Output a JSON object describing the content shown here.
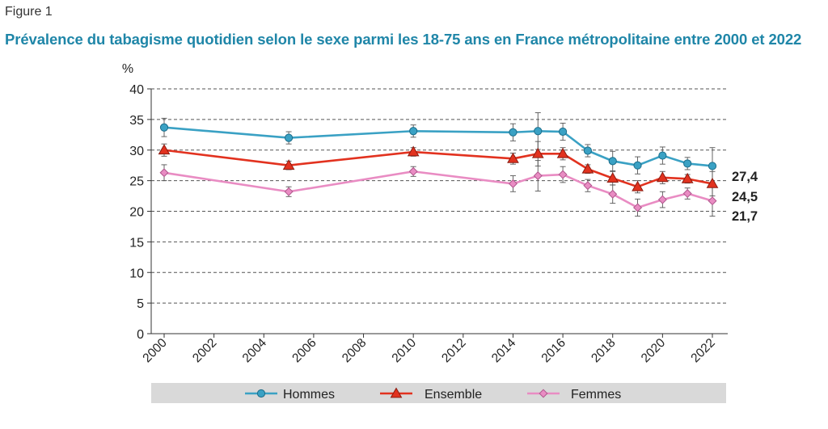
{
  "figure_label": "Figure 1",
  "title": "Prévalence du tabagisme quotidien selon le sexe parmi les 18-75 ans en France métropolitaine entre 2000 et 2022",
  "colors": {
    "title": "#1f86a8",
    "Hommes": "#3aa1c4",
    "Ensemble": "#e2321f",
    "Femmes": "#e98cc3",
    "legend_bg": "#d9d9d9"
  },
  "chart_data": {
    "type": "line",
    "ylabel": "%",
    "ylim": [
      0,
      40
    ],
    "yticks": [
      0,
      5,
      10,
      15,
      20,
      25,
      30,
      35,
      40
    ],
    "xlim": [
      2000,
      2022
    ],
    "xticks": [
      2000,
      2002,
      2004,
      2006,
      2008,
      2010,
      2012,
      2014,
      2016,
      2018,
      2020,
      2022
    ],
    "grid": "horizontal-dashed",
    "legend_position": "bottom",
    "series": [
      {
        "name": "Hommes",
        "marker": "circle",
        "x": [
          2000,
          2005,
          2010,
          2014,
          2015,
          2016,
          2017,
          2018,
          2019,
          2020,
          2021,
          2022
        ],
        "values": [
          33.7,
          32.0,
          33.1,
          32.9,
          33.1,
          33.0,
          29.9,
          28.2,
          27.5,
          29.1,
          27.8,
          27.4
        ],
        "err": [
          1.5,
          1.0,
          1.0,
          1.4,
          3.0,
          1.4,
          1.0,
          1.6,
          1.4,
          1.4,
          1.0,
          3.0
        ]
      },
      {
        "name": "Ensemble",
        "marker": "triangle",
        "x": [
          2000,
          2005,
          2010,
          2014,
          2015,
          2016,
          2017,
          2018,
          2019,
          2020,
          2021,
          2022
        ],
        "values": [
          30.0,
          27.5,
          29.7,
          28.6,
          29.4,
          29.4,
          26.9,
          25.4,
          24.0,
          25.5,
          25.3,
          24.5
        ],
        "err": [
          1.0,
          0.7,
          0.7,
          0.9,
          2.0,
          1.0,
          0.7,
          1.1,
          1.0,
          1.0,
          0.7,
          2.0
        ]
      },
      {
        "name": "Femmes",
        "marker": "diamond",
        "x": [
          2000,
          2005,
          2010,
          2014,
          2015,
          2016,
          2017,
          2018,
          2019,
          2020,
          2021,
          2022
        ],
        "values": [
          26.3,
          23.2,
          26.5,
          24.5,
          25.8,
          26.0,
          24.2,
          22.8,
          20.6,
          21.9,
          22.9,
          21.7
        ],
        "err": [
          1.3,
          0.8,
          0.8,
          1.3,
          2.5,
          1.3,
          1.0,
          1.5,
          1.4,
          1.3,
          0.9,
          2.5
        ]
      }
    ],
    "end_labels": [
      {
        "series": "Hommes",
        "text": "27,4"
      },
      {
        "series": "Ensemble",
        "text": "24,5"
      },
      {
        "series": "Femmes",
        "text": "21,7"
      }
    ]
  }
}
